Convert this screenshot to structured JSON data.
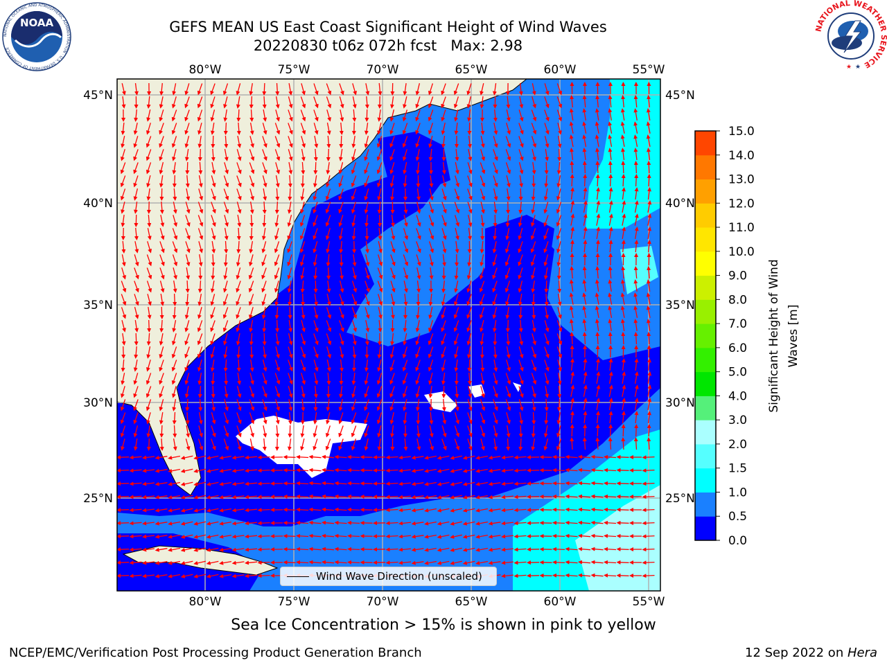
{
  "header": {
    "title_line1": "GEFS MEAN US East Coast Significant Height of Wind Waves",
    "title_line2": "20220830 t06z 072h fcst   Max: 2.98"
  },
  "map": {
    "lon_ticks": [
      "80°W",
      "75°W",
      "70°W",
      "65°W",
      "60°W",
      "55°W"
    ],
    "lat_ticks": [
      "45°N",
      "40°N",
      "35°N",
      "30°N",
      "25°N"
    ],
    "extent": {
      "lon_min": -85,
      "lon_max": -54.5,
      "lat_min": 20,
      "lat_max": 45.8
    },
    "colors": {
      "land": "#efefdc",
      "ocean_0_0.5": "#0000ff",
      "ocean_0.5_1": "#1a80ff",
      "ocean_1_1.5": "#00e6f0",
      "ocean_1.5_2": "#55ffff",
      "ocean_2_3": "#aaffff",
      "arrow": "#ff0000",
      "grid": "#b0b0b0"
    },
    "legend_label": "Wind Wave Direction (unscaled)"
  },
  "colorbar": {
    "label": "Significant Height of Wind Waves [m]",
    "label_line1": "Significant Height of Wind",
    "label_line2": "Waves [m]",
    "ticks": [
      "15.0",
      "14.0",
      "13.0",
      "12.0",
      "11.0",
      "10.0",
      "9.0",
      "8.0",
      "7.0",
      "6.0",
      "5.0",
      "4.0",
      "3.0",
      "2.0",
      "1.5",
      "1.0",
      "0.5",
      "0.0"
    ],
    "segment_colors": [
      "#0000ff",
      "#1a80ff",
      "#00ffff",
      "#55ffff",
      "#aaffff",
      "#55f07a",
      "#00e600",
      "#33f000",
      "#66f000",
      "#99f000",
      "#ccf000",
      "#ffff00",
      "#ffe600",
      "#ffcc00",
      "#ffa000",
      "#ff7800",
      "#ff4600",
      "#ff0000"
    ]
  },
  "caption": "Sea Ice Concentration > 15% is shown in pink to yellow",
  "footer": {
    "left": "NCEP/EMC/Verification Post Processing Product Generation Branch",
    "right_date": "12 Sep 2022 on ",
    "right_host": "Hera"
  },
  "logos": {
    "noaa_text": "NOAA",
    "noaa_ring": "NATIONAL OCEANIC AND ATMOSPHERIC ADMINISTRATION · U.S. DEPARTMENT OF COMMERCE",
    "nws_ring": "NATIONAL WEATHER SERVICE"
  }
}
